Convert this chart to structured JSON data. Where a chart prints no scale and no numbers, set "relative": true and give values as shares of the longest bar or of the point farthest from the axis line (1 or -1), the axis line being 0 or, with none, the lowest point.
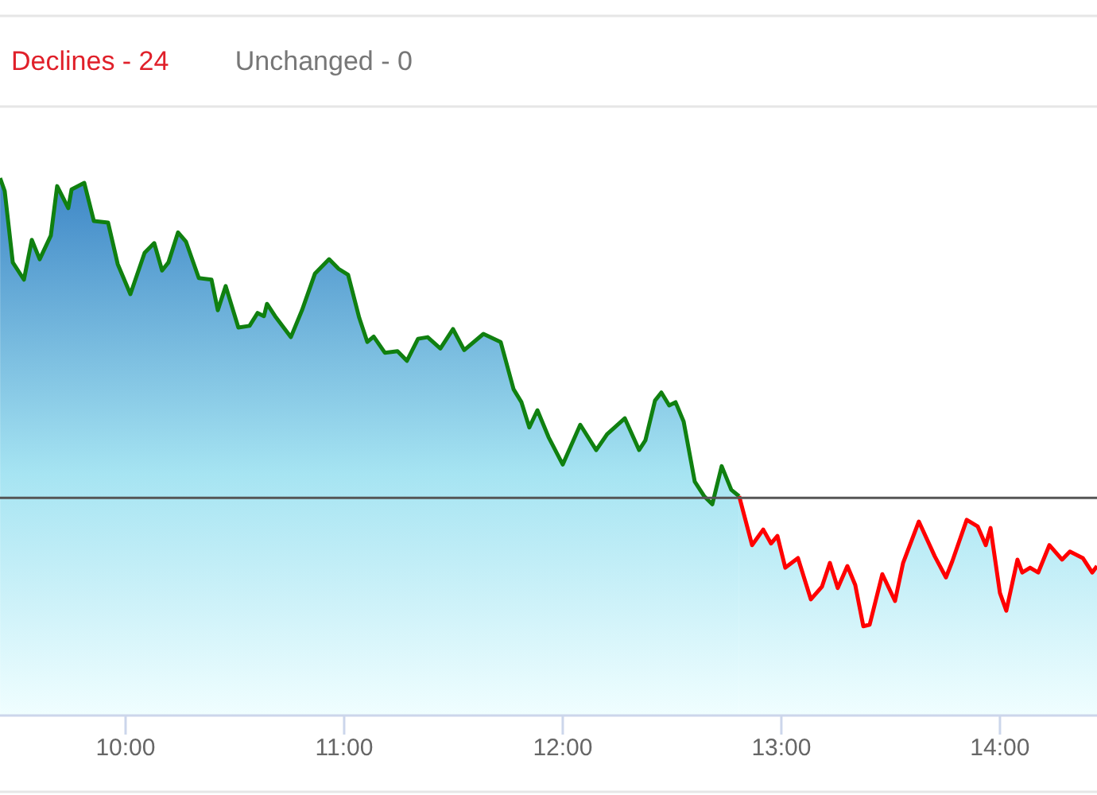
{
  "chart_data": {
    "type": "area",
    "relative": true,
    "annotations": [
      "Declines - 24",
      "Unchanged - 0"
    ],
    "xlim": [
      9.4255,
      14.444
    ],
    "xticks": [
      {
        "value": 10,
        "label": "10:00"
      },
      {
        "value": 11,
        "label": "11:00"
      },
      {
        "value": 12,
        "label": "12:00"
      },
      {
        "value": 13,
        "label": "13:00"
      },
      {
        "value": 14,
        "label": "14:00"
      }
    ],
    "grid": false,
    "marker": "none",
    "line_style": "solid",
    "tick_labels": "x",
    "ref_lines": [
      {
        "axis": "y",
        "value": 0.405,
        "color": "#555555"
      }
    ],
    "series": [
      {
        "color": "#108010",
        "x": [
          9.426,
          9.447,
          9.484,
          9.535,
          9.571,
          9.607,
          9.658,
          9.687,
          9.738,
          9.753,
          9.811,
          9.855,
          9.92,
          9.964,
          10.022,
          10.087,
          10.131,
          10.167,
          10.196,
          10.24,
          10.276,
          10.335,
          10.393,
          10.422,
          10.458,
          10.516,
          10.567,
          10.604,
          10.633,
          10.647,
          10.684,
          10.756,
          10.807,
          10.866,
          10.931,
          10.975,
          11.018,
          11.069,
          11.106,
          11.135,
          11.186,
          11.244,
          11.287,
          11.338,
          11.382,
          11.44,
          11.498,
          11.549,
          11.637,
          11.716,
          11.775,
          11.811,
          11.847,
          11.884,
          11.935,
          12.0,
          12.08,
          12.153,
          12.204,
          12.284,
          12.349,
          12.378,
          12.422,
          12.451,
          12.487,
          12.516,
          12.553,
          12.604,
          12.647,
          12.684,
          12.727,
          12.771,
          12.807
        ],
        "values": [
          1.0,
          0.976,
          0.843,
          0.811,
          0.885,
          0.849,
          0.893,
          0.985,
          0.944,
          0.979,
          0.991,
          0.92,
          0.917,
          0.84,
          0.784,
          0.861,
          0.879,
          0.828,
          0.843,
          0.899,
          0.882,
          0.814,
          0.811,
          0.754,
          0.799,
          0.722,
          0.725,
          0.749,
          0.743,
          0.766,
          0.743,
          0.704,
          0.754,
          0.822,
          0.849,
          0.831,
          0.82,
          0.74,
          0.695,
          0.705,
          0.675,
          0.678,
          0.66,
          0.701,
          0.704,
          0.683,
          0.719,
          0.68,
          0.71,
          0.695,
          0.607,
          0.583,
          0.536,
          0.568,
          0.518,
          0.467,
          0.541,
          0.494,
          0.524,
          0.553,
          0.494,
          0.512,
          0.586,
          0.601,
          0.577,
          0.583,
          0.547,
          0.435,
          0.408,
          0.393,
          0.464,
          0.42,
          0.408
        ]
      },
      {
        "color": "#ff0000",
        "x": [
          12.807,
          12.866,
          12.917,
          12.953,
          12.982,
          13.018,
          13.076,
          13.135,
          13.186,
          13.222,
          13.258,
          13.302,
          13.338,
          13.375,
          13.404,
          13.462,
          13.52,
          13.557,
          13.629,
          13.702,
          13.753,
          13.782,
          13.848,
          13.898,
          13.935,
          13.957,
          14.0,
          14.029,
          14.08,
          14.102,
          14.138,
          14.175,
          14.226,
          14.284,
          14.32,
          14.379,
          14.422,
          14.444
        ],
        "values": [
          0.408,
          0.317,
          0.346,
          0.32,
          0.334,
          0.275,
          0.293,
          0.216,
          0.24,
          0.284,
          0.237,
          0.278,
          0.243,
          0.166,
          0.169,
          0.263,
          0.213,
          0.284,
          0.361,
          0.296,
          0.257,
          0.287,
          0.364,
          0.352,
          0.317,
          0.349,
          0.228,
          0.195,
          0.29,
          0.266,
          0.275,
          0.266,
          0.317,
          0.29,
          0.305,
          0.293,
          0.266,
          0.278
        ]
      }
    ]
  }
}
